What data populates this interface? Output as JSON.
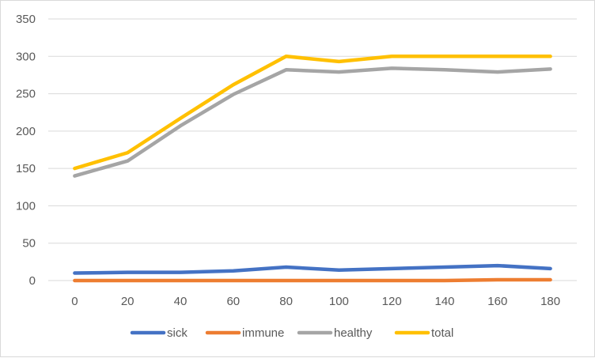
{
  "chart_data": {
    "type": "line",
    "title": "",
    "xlabel": "",
    "ylabel": "",
    "x": [
      0,
      20,
      40,
      60,
      80,
      100,
      120,
      140,
      160,
      180
    ],
    "xlim": [
      0,
      180
    ],
    "ylim": [
      0,
      350
    ],
    "y_ticks": [
      0,
      50,
      100,
      150,
      200,
      250,
      300,
      350
    ],
    "grid": "horizontal",
    "legend_position": "bottom",
    "series": [
      {
        "name": "sick",
        "color": "#4472C4",
        "values": [
          10,
          11,
          11,
          13,
          18,
          14,
          16,
          18,
          20,
          16
        ]
      },
      {
        "name": "immune",
        "color": "#ED7D31",
        "values": [
          0,
          0,
          0,
          0,
          0,
          0,
          0,
          0,
          1,
          1
        ]
      },
      {
        "name": "healthy",
        "color": "#A5A5A5",
        "values": [
          140,
          160,
          207,
          249,
          282,
          279,
          284,
          282,
          279,
          283
        ]
      },
      {
        "name": "total",
        "color": "#FFC000",
        "values": [
          150,
          171,
          217,
          262,
          300,
          293,
          300,
          300,
          300,
          300
        ]
      }
    ]
  }
}
